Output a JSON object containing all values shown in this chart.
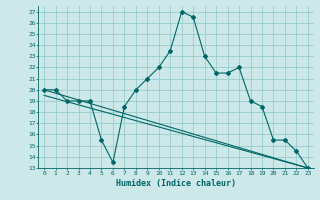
{
  "xlabel": "Humidex (Indice chaleur)",
  "background_color": "#cce8e8",
  "grid_color": "#99cccc",
  "line_color": "#006666",
  "xlim": [
    -0.5,
    23.5
  ],
  "ylim": [
    13,
    27.5
  ],
  "x_ticks": [
    0,
    1,
    2,
    3,
    4,
    5,
    6,
    7,
    8,
    9,
    10,
    11,
    12,
    13,
    14,
    15,
    16,
    17,
    18,
    19,
    20,
    21,
    22,
    23
  ],
  "y_ticks": [
    13,
    14,
    15,
    16,
    17,
    18,
    19,
    20,
    21,
    22,
    23,
    24,
    25,
    26,
    27
  ],
  "series1_x": [
    0,
    1,
    2,
    3,
    4,
    5,
    6,
    7,
    8,
    9,
    10,
    11,
    12,
    13,
    14,
    15,
    16,
    17,
    18,
    19,
    20,
    21,
    22,
    23
  ],
  "series1_y": [
    20,
    20,
    19,
    19,
    19,
    15.5,
    13.5,
    18.5,
    20,
    21,
    22,
    23.5,
    27,
    26.5,
    23,
    21.5,
    21.5,
    22,
    19,
    18.5,
    15.5,
    15.5,
    14.5,
    13
  ],
  "series2_x": [
    0,
    23
  ],
  "series2_y": [
    20,
    13
  ],
  "series3_x": [
    0,
    23
  ],
  "series3_y": [
    19.5,
    13
  ],
  "marker_size": 2.0,
  "linewidth": 0.8,
  "xlabel_fontsize": 6,
  "tick_fontsize": 4.5
}
